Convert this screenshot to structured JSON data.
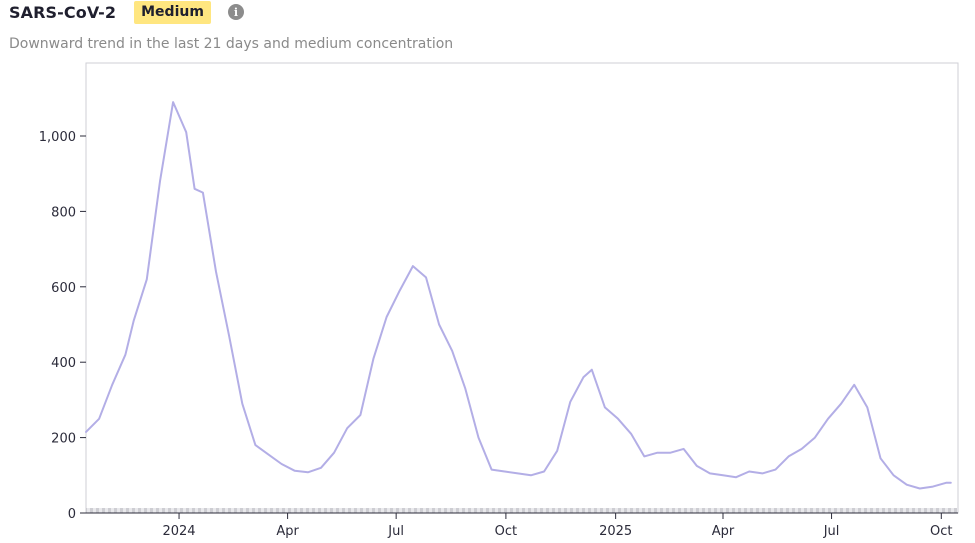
{
  "header": {
    "title": "SARS-CoV-2",
    "badge": "Medium",
    "info_icon": "info-circle-icon",
    "subtitle": "Downward trend in the last 21 days and medium concentration"
  },
  "colors": {
    "line": "#b3aee6",
    "badge": "#ffe680",
    "grid_frame": "#cfcfd6",
    "axis": "#2b2b3a"
  },
  "chart_data": {
    "type": "line",
    "title": "SARS-CoV-2",
    "subtitle": "Downward trend in the last 21 days and medium concentration",
    "xlabel": "",
    "ylabel": "",
    "ylim": [
      0,
      1200
    ],
    "xlim": [
      "2023-10-15",
      "2025-10-15"
    ],
    "grid": false,
    "legend": "none",
    "y_ticks": [
      {
        "value": 0,
        "label": "0"
      },
      {
        "value": 200,
        "label": "200"
      },
      {
        "value": 400,
        "label": "400"
      },
      {
        "value": 600,
        "label": "600"
      },
      {
        "value": 800,
        "label": "800"
      },
      {
        "value": 1000,
        "label": "1,000"
      }
    ],
    "x_ticks": [
      {
        "date": "2024-01-01",
        "label": "2024"
      },
      {
        "date": "2024-04-01",
        "label": "Apr"
      },
      {
        "date": "2024-07-01",
        "label": "Jul"
      },
      {
        "date": "2024-10-01",
        "label": "Oct"
      },
      {
        "date": "2025-01-01",
        "label": "2025"
      },
      {
        "date": "2025-04-01",
        "label": "Apr"
      },
      {
        "date": "2025-07-01",
        "label": "Jul"
      },
      {
        "date": "2025-10-01",
        "label": "Oct"
      }
    ],
    "series": [
      {
        "points": [
          [
            "2023-10-15",
            215
          ],
          [
            "2023-10-26",
            250
          ],
          [
            "2023-11-06",
            340
          ],
          [
            "2023-11-17",
            420
          ],
          [
            "2023-11-24",
            510
          ],
          [
            "2023-12-05",
            620
          ],
          [
            "2023-12-16",
            880
          ],
          [
            "2023-12-27",
            1090
          ],
          [
            "2024-01-07",
            1010
          ],
          [
            "2024-01-14",
            860
          ],
          [
            "2024-01-21",
            850
          ],
          [
            "2024-02-01",
            640
          ],
          [
            "2024-02-12",
            470
          ],
          [
            "2024-02-23",
            290
          ],
          [
            "2024-03-05",
            180
          ],
          [
            "2024-03-16",
            155
          ],
          [
            "2024-03-27",
            130
          ],
          [
            "2024-04-07",
            112
          ],
          [
            "2024-04-18",
            108
          ],
          [
            "2024-04-29",
            120
          ],
          [
            "2024-05-10",
            160
          ],
          [
            "2024-05-21",
            225
          ],
          [
            "2024-06-01",
            260
          ],
          [
            "2024-06-12",
            410
          ],
          [
            "2024-06-23",
            520
          ],
          [
            "2024-07-04",
            590
          ],
          [
            "2024-07-15",
            655
          ],
          [
            "2024-07-26",
            625
          ],
          [
            "2024-08-06",
            500
          ],
          [
            "2024-08-17",
            430
          ],
          [
            "2024-08-28",
            330
          ],
          [
            "2024-09-08",
            200
          ],
          [
            "2024-09-19",
            115
          ],
          [
            "2024-09-30",
            110
          ],
          [
            "2024-10-11",
            105
          ],
          [
            "2024-10-22",
            100
          ],
          [
            "2024-11-02",
            110
          ],
          [
            "2024-11-13",
            165
          ],
          [
            "2024-11-24",
            295
          ],
          [
            "2024-12-05",
            360
          ],
          [
            "2024-12-12",
            380
          ],
          [
            "2024-12-23",
            280
          ],
          [
            "2025-01-03",
            250
          ],
          [
            "2025-01-14",
            210
          ],
          [
            "2025-01-25",
            150
          ],
          [
            "2025-02-05",
            160
          ],
          [
            "2025-02-16",
            160
          ],
          [
            "2025-02-27",
            170
          ],
          [
            "2025-03-10",
            125
          ],
          [
            "2025-03-21",
            105
          ],
          [
            "2025-04-01",
            100
          ],
          [
            "2025-04-12",
            95
          ],
          [
            "2025-04-23",
            110
          ],
          [
            "2025-05-04",
            105
          ],
          [
            "2025-05-15",
            115
          ],
          [
            "2025-05-26",
            150
          ],
          [
            "2025-06-06",
            170
          ],
          [
            "2025-06-17",
            200
          ],
          [
            "2025-06-28",
            250
          ],
          [
            "2025-07-09",
            290
          ],
          [
            "2025-07-20",
            340
          ],
          [
            "2025-07-31",
            280
          ],
          [
            "2025-08-11",
            145
          ],
          [
            "2025-08-22",
            100
          ],
          [
            "2025-09-02",
            75
          ],
          [
            "2025-09-13",
            65
          ],
          [
            "2025-09-24",
            70
          ],
          [
            "2025-10-05",
            80
          ],
          [
            "2025-10-09",
            80
          ]
        ]
      }
    ]
  }
}
